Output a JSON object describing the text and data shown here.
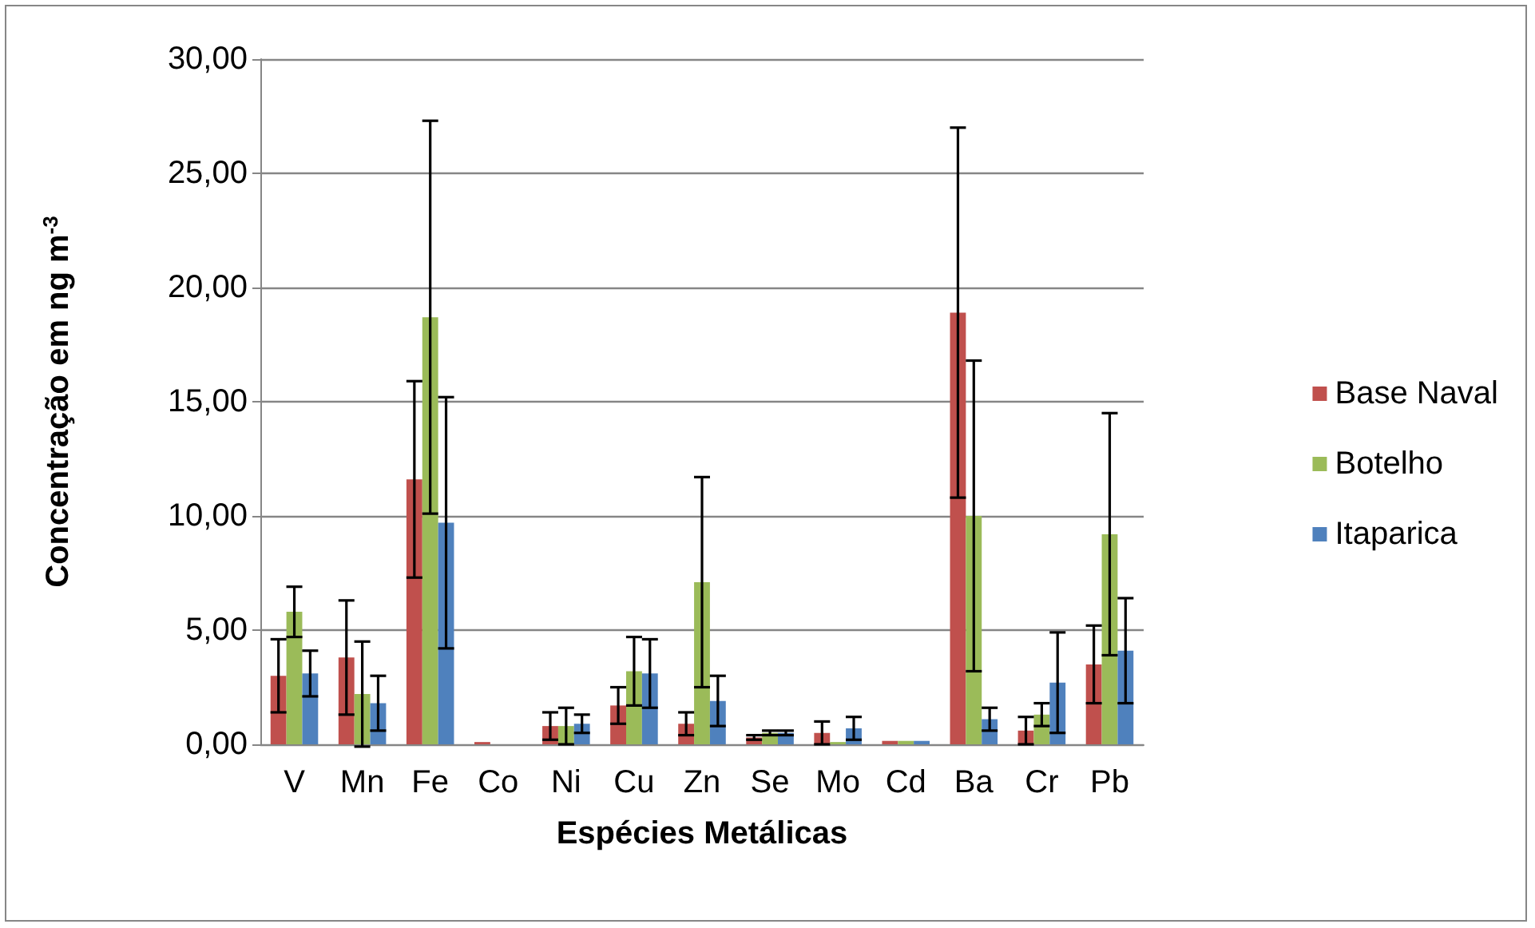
{
  "chart_data": {
    "type": "bar",
    "xlabel": "Espécies Metálicas",
    "ylabel": "Concentração em ng m$^{-3}$",
    "categories": [
      "V",
      "Mn",
      "Fe",
      "Co",
      "Ni",
      "Cu",
      "Zn",
      "Se",
      "Mo",
      "Cd",
      "Ba",
      "Cr",
      "Pb"
    ],
    "series": [
      {
        "name": "Base Naval",
        "color": "#c0504d",
        "values": [
          3.0,
          3.8,
          11.6,
          0.1,
          0.8,
          1.7,
          0.9,
          0.3,
          0.5,
          0.15,
          18.9,
          0.6,
          3.5
        ],
        "errors": [
          1.6,
          2.5,
          4.3,
          null,
          0.6,
          0.8,
          0.5,
          0.1,
          0.5,
          null,
          8.1,
          0.6,
          1.7
        ]
      },
      {
        "name": "Botelho",
        "color": "#9bbb59",
        "values": [
          5.8,
          2.2,
          18.7,
          null,
          0.8,
          3.2,
          7.1,
          0.5,
          0.1,
          0.15,
          10.0,
          1.3,
          9.2
        ],
        "errors": [
          1.1,
          2.3,
          8.6,
          null,
          0.8,
          1.5,
          4.6,
          0.1,
          null,
          null,
          6.8,
          0.5,
          5.3
        ]
      },
      {
        "name": "Itaparica",
        "color": "#4f81bd",
        "values": [
          3.1,
          1.8,
          9.7,
          null,
          0.9,
          3.1,
          1.9,
          0.5,
          0.7,
          0.15,
          1.1,
          2.7,
          4.1
        ],
        "errors": [
          1.0,
          1.2,
          5.5,
          null,
          0.4,
          1.5,
          1.1,
          0.1,
          0.5,
          null,
          0.5,
          2.2,
          2.3
        ]
      }
    ],
    "ylim": [
      0,
      30
    ],
    "yticks": [
      {
        "value": 0,
        "label": "0,00"
      },
      {
        "value": 5,
        "label": "5,00"
      },
      {
        "value": 10,
        "label": "10,00"
      },
      {
        "value": 15,
        "label": "15,00"
      },
      {
        "value": 20,
        "label": "20,00"
      },
      {
        "value": 25,
        "label": "25,00"
      },
      {
        "value": 30,
        "label": "30,00"
      }
    ],
    "grid": "y",
    "legend": "right"
  }
}
